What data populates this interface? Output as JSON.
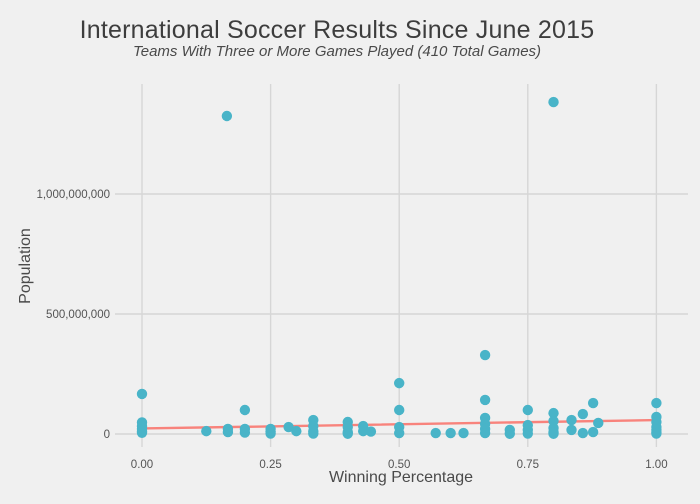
{
  "title": "International Soccer Results Since June 2015",
  "subtitle": "Teams With Three or More Games Played (410 Total Games)",
  "colors": {
    "background": "#F0F0F0",
    "gridline": "#D6D6D6",
    "point": "#49B4C8",
    "trend_line": "#F8837C",
    "title_text": "#3D3D3D",
    "axis_text": "#545454"
  },
  "chart_data": {
    "type": "scatter",
    "title": "International Soccer Results Since June 2015",
    "subtitle": "Teams With Three or More Games Played (410 Total Games)",
    "xlabel": "Winning Percentage",
    "ylabel": "Population",
    "xlim": [
      -0.052,
      1.062
    ],
    "ylim": [
      -55000000,
      1455000000
    ],
    "grid": true,
    "legend": "none",
    "x_ticks": [
      {
        "value": 0.0,
        "label": "0.00"
      },
      {
        "value": 0.25,
        "label": "0.25"
      },
      {
        "value": 0.5,
        "label": "0.50"
      },
      {
        "value": 0.75,
        "label": "0.75"
      },
      {
        "value": 1.0,
        "label": "1.00"
      }
    ],
    "y_ticks": [
      {
        "value": 0,
        "label": "0"
      },
      {
        "value": 500000000,
        "label": "500,000,000"
      },
      {
        "value": 1000000000,
        "label": "1,000,000,000"
      }
    ],
    "trend_line": {
      "x1": 0.0,
      "y1": 23000000,
      "x2": 1.0,
      "y2": 58000000
    },
    "points": [
      {
        "x": 0.0,
        "y": 167000000
      },
      {
        "x": 0.0,
        "y": 48000000
      },
      {
        "x": 0.0,
        "y": 33000000
      },
      {
        "x": 0.0,
        "y": 21000000
      },
      {
        "x": 0.0,
        "y": 12000000
      },
      {
        "x": 0.0,
        "y": 5000000
      },
      {
        "x": 0.125,
        "y": 12000000
      },
      {
        "x": 0.165,
        "y": 1325000000
      },
      {
        "x": 0.167,
        "y": 21000000
      },
      {
        "x": 0.167,
        "y": 8000000
      },
      {
        "x": 0.2,
        "y": 100000000
      },
      {
        "x": 0.2,
        "y": 21000000
      },
      {
        "x": 0.2,
        "y": 6000000
      },
      {
        "x": 0.25,
        "y": 21000000
      },
      {
        "x": 0.25,
        "y": 10000000
      },
      {
        "x": 0.25,
        "y": 2000000
      },
      {
        "x": 0.285,
        "y": 29000000
      },
      {
        "x": 0.3,
        "y": 12000000
      },
      {
        "x": 0.333,
        "y": 58000000
      },
      {
        "x": 0.333,
        "y": 33000000
      },
      {
        "x": 0.333,
        "y": 12000000
      },
      {
        "x": 0.333,
        "y": 2000000
      },
      {
        "x": 0.4,
        "y": 50000000
      },
      {
        "x": 0.4,
        "y": 29000000
      },
      {
        "x": 0.4,
        "y": 8000000
      },
      {
        "x": 0.4,
        "y": 1000000
      },
      {
        "x": 0.43,
        "y": 33000000
      },
      {
        "x": 0.43,
        "y": 12000000
      },
      {
        "x": 0.445,
        "y": 10000000
      },
      {
        "x": 0.5,
        "y": 212000000
      },
      {
        "x": 0.5,
        "y": 100000000
      },
      {
        "x": 0.5,
        "y": 29000000
      },
      {
        "x": 0.5,
        "y": 4000000
      },
      {
        "x": 0.571,
        "y": 4000000
      },
      {
        "x": 0.6,
        "y": 4000000
      },
      {
        "x": 0.625,
        "y": 4000000
      },
      {
        "x": 0.667,
        "y": 329000000
      },
      {
        "x": 0.667,
        "y": 142000000
      },
      {
        "x": 0.667,
        "y": 67000000
      },
      {
        "x": 0.667,
        "y": 42000000
      },
      {
        "x": 0.667,
        "y": 21000000
      },
      {
        "x": 0.667,
        "y": 4000000
      },
      {
        "x": 0.715,
        "y": 17000000
      },
      {
        "x": 0.715,
        "y": 1000000
      },
      {
        "x": 0.75,
        "y": 100000000
      },
      {
        "x": 0.75,
        "y": 37000000
      },
      {
        "x": 0.75,
        "y": 17000000
      },
      {
        "x": 0.75,
        "y": 2000000
      },
      {
        "x": 0.8,
        "y": 1383000000
      },
      {
        "x": 0.8,
        "y": 87000000
      },
      {
        "x": 0.8,
        "y": 54000000
      },
      {
        "x": 0.8,
        "y": 25000000
      },
      {
        "x": 0.8,
        "y": 8000000
      },
      {
        "x": 0.8,
        "y": 1000000
      },
      {
        "x": 0.835,
        "y": 58000000
      },
      {
        "x": 0.835,
        "y": 17000000
      },
      {
        "x": 0.857,
        "y": 83000000
      },
      {
        "x": 0.857,
        "y": 4000000
      },
      {
        "x": 0.877,
        "y": 129000000
      },
      {
        "x": 0.877,
        "y": 8000000
      },
      {
        "x": 0.887,
        "y": 46000000
      },
      {
        "x": 1.0,
        "y": 129000000
      },
      {
        "x": 1.0,
        "y": 71000000
      },
      {
        "x": 1.0,
        "y": 50000000
      },
      {
        "x": 1.0,
        "y": 29000000
      },
      {
        "x": 1.0,
        "y": 17000000
      },
      {
        "x": 1.0,
        "y": 8000000
      },
      {
        "x": 1.0,
        "y": 2000000
      }
    ]
  }
}
